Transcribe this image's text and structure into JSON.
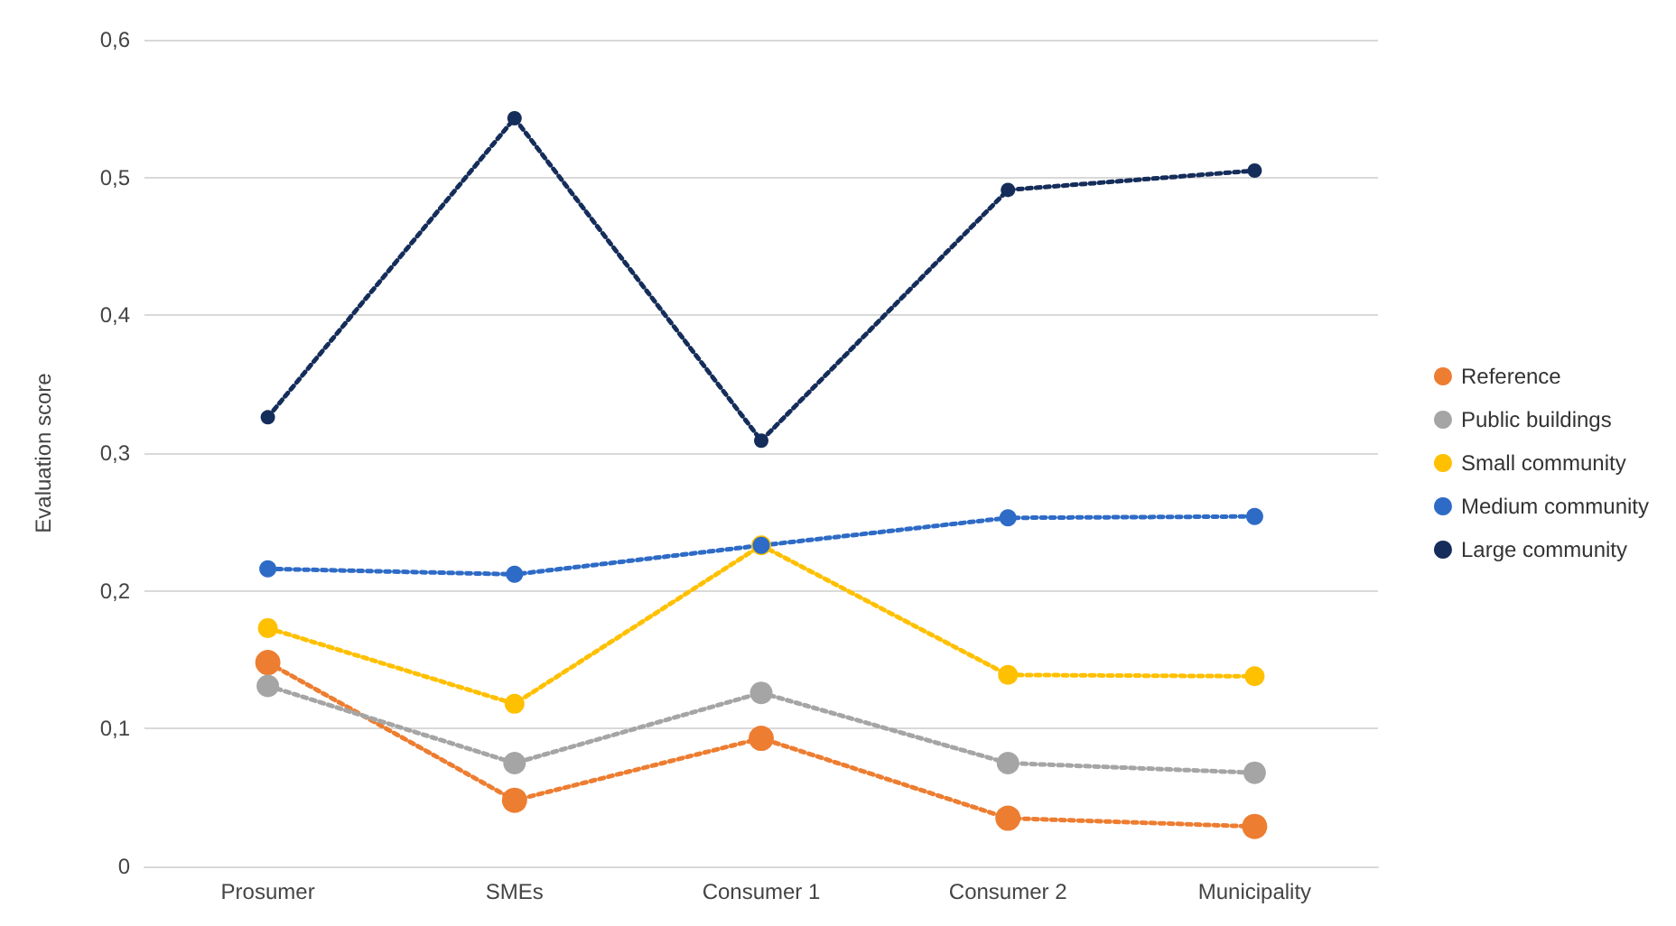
{
  "chart_data": {
    "type": "line",
    "ylabel": "Evaluation score",
    "categories": [
      "Prosumer",
      "SMEs",
      "Consumer 1",
      "Consumer 2",
      "Municipality"
    ],
    "series": [
      {
        "name": "Reference",
        "color": "#ed7d31",
        "values": [
          0.148,
          0.048,
          0.093,
          0.035,
          0.029
        ]
      },
      {
        "name": "Public buildings",
        "color": "#a5a5a5",
        "values": [
          0.131,
          0.075,
          0.126,
          0.075,
          0.068
        ]
      },
      {
        "name": "Small community",
        "color": "#ffc000",
        "values": [
          0.173,
          0.118,
          0.233,
          0.139,
          0.138
        ]
      },
      {
        "name": "Medium community",
        "color": "#2e6bc6",
        "values": [
          0.216,
          0.212,
          0.233,
          0.253,
          0.254
        ]
      },
      {
        "name": "Large community",
        "color": "#152d5a",
        "values": [
          0.326,
          0.543,
          0.309,
          0.491,
          0.505
        ]
      }
    ],
    "ylim": [
      0,
      0.6
    ],
    "yticks": [
      0,
      {
        "value": 0.1,
        "label": "0,1"
      },
      {
        "value": 0.2,
        "label": "0,2"
      },
      {
        "value": 0.3,
        "label": "0,3"
      },
      {
        "value": 0.4,
        "label": "0,4"
      },
      {
        "value": 0.5,
        "label": "0,5"
      },
      {
        "value": 0.6,
        "label": "0,6"
      }
    ],
    "grid": "y",
    "legend": "right",
    "marker": "circle",
    "line_style": "dotted"
  }
}
